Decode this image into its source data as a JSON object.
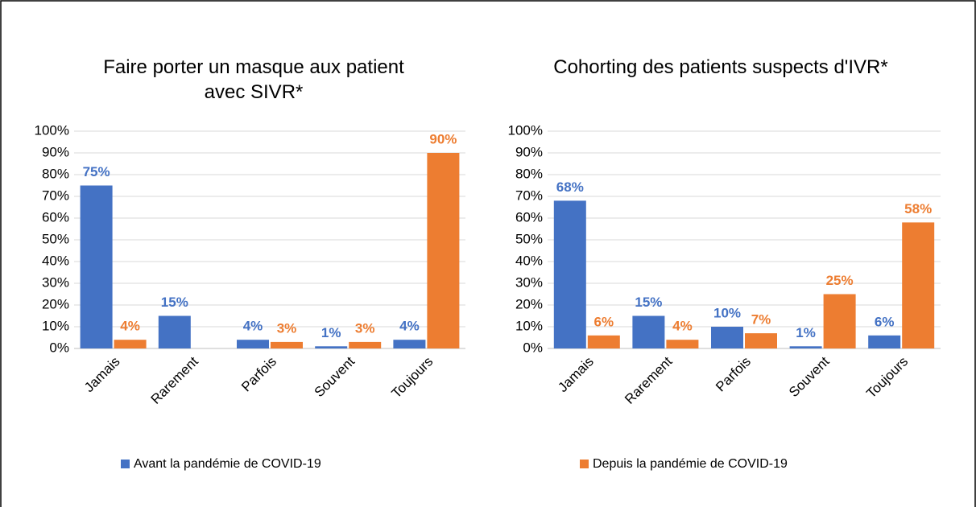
{
  "chart_data": [
    {
      "type": "bar",
      "title": "Faire porter un masque aux patient avec SIVR*",
      "categories": [
        "Jamais",
        "Rarement",
        "Parfois",
        "Souvent",
        "Toujours"
      ],
      "series": [
        {
          "values": [
            75,
            15,
            4,
            1,
            4
          ],
          "value_labels": [
            "75%",
            "15%",
            "4%",
            "1%",
            "4%"
          ]
        },
        {
          "values": [
            4,
            null,
            3,
            3,
            90
          ],
          "value_labels": [
            "4%",
            null,
            "3%",
            "3%",
            "90%"
          ]
        }
      ],
      "ylim": [
        0,
        100
      ],
      "yticks": [
        {
          "value": 0,
          "label": "0%"
        },
        {
          "value": 10,
          "label": "10%"
        },
        {
          "value": 20,
          "label": "20%"
        },
        {
          "value": 30,
          "label": "30%"
        },
        {
          "value": 40,
          "label": "40%"
        },
        {
          "value": 50,
          "label": "50%"
        },
        {
          "value": 60,
          "label": "60%"
        },
        {
          "value": 70,
          "label": "70%"
        },
        {
          "value": 80,
          "label": "80%"
        },
        {
          "value": 90,
          "label": "90%"
        },
        {
          "value": 100,
          "label": "100%"
        }
      ],
      "grid": true
    },
    {
      "type": "bar",
      "title": "Cohorting des patients suspects d'IVR*",
      "categories": [
        "Jamais",
        "Rarement",
        "Parfois",
        "Souvent",
        "Toujours"
      ],
      "series": [
        {
          "values": [
            68,
            15,
            10,
            1,
            6
          ],
          "value_labels": [
            "68%",
            "15%",
            "10%",
            "1%",
            "6%"
          ]
        },
        {
          "values": [
            6,
            4,
            7,
            25,
            58
          ],
          "value_labels": [
            "6%",
            "4%",
            "7%",
            "25%",
            "58%"
          ]
        }
      ],
      "ylim": [
        0,
        100
      ],
      "yticks": [
        {
          "value": 0,
          "label": "0%"
        },
        {
          "value": 10,
          "label": "10%"
        },
        {
          "value": 20,
          "label": "20%"
        },
        {
          "value": 30,
          "label": "30%"
        },
        {
          "value": 40,
          "label": "40%"
        },
        {
          "value": 50,
          "label": "50%"
        },
        {
          "value": 60,
          "label": "60%"
        },
        {
          "value": 70,
          "label": "70%"
        },
        {
          "value": 80,
          "label": "80%"
        },
        {
          "value": 90,
          "label": "90%"
        },
        {
          "value": 100,
          "label": "100%"
        }
      ],
      "grid": true
    }
  ],
  "legend": [
    {
      "name": "Avant la pandémie de COVID-19",
      "color": "#4472c4"
    },
    {
      "name": "Depuis la pandémie de COVID-19",
      "color": "#ed7d31"
    }
  ]
}
